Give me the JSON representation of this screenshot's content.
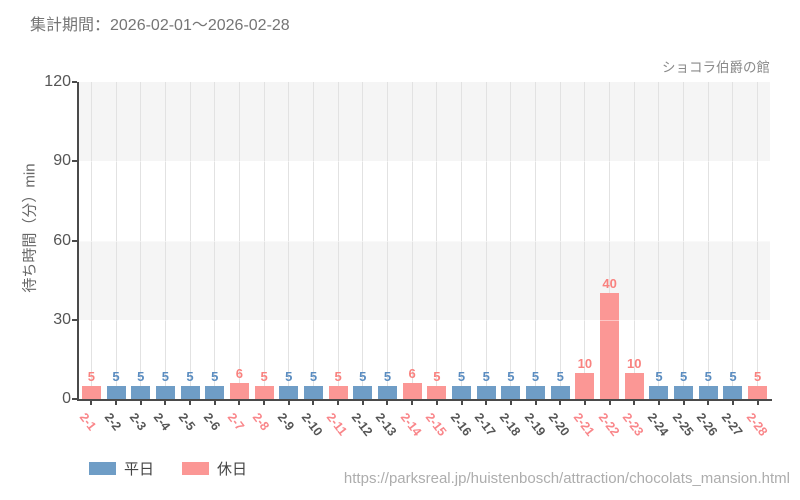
{
  "header": {
    "period_title": "集計期間：2026-02-01～2026-02-28",
    "attraction_name": "ショコラ伯爵の館"
  },
  "legend": {
    "weekday": "平日",
    "holiday": "休日"
  },
  "footer": {
    "url": "https://parksreal.jp/huistenbosch/attraction/chocolats_mansion.html"
  },
  "colors": {
    "weekday_bar": "#6f9dc6",
    "holiday_bar": "#fb9795",
    "weekday_value_label": "#5a8cc0",
    "holiday_value_label": "#f9827f",
    "weekday_tick_label": "#555555",
    "holiday_tick_label": "#f9868a",
    "band_gray": "#f5f5f5",
    "grid_line": "#e2e2e2",
    "axis": "#4a4a4a"
  },
  "chart_data": {
    "type": "bar",
    "title": "集計期間：2026-02-01～2026-02-28",
    "subtitle": "ショコラ伯爵の館",
    "xlabel": "",
    "ylabel": "待ち時間（分）min",
    "ylim": [
      0,
      120
    ],
    "yticks": [
      0,
      30,
      60,
      90,
      120
    ],
    "grid": true,
    "legend_position": "bottom-left",
    "categories": [
      "2-1",
      "2-2",
      "2-3",
      "2-4",
      "2-5",
      "2-6",
      "2-7",
      "2-8",
      "2-9",
      "2-10",
      "2-11",
      "2-12",
      "2-13",
      "2-14",
      "2-15",
      "2-16",
      "2-17",
      "2-18",
      "2-19",
      "2-20",
      "2-21",
      "2-22",
      "2-23",
      "2-24",
      "2-25",
      "2-26",
      "2-27",
      "2-28"
    ],
    "values": [
      5,
      5,
      5,
      5,
      5,
      5,
      6,
      5,
      5,
      5,
      5,
      5,
      5,
      6,
      5,
      5,
      5,
      5,
      5,
      5,
      10,
      40,
      10,
      5,
      5,
      5,
      5,
      5
    ],
    "day_types": [
      "holiday",
      "weekday",
      "weekday",
      "weekday",
      "weekday",
      "weekday",
      "holiday",
      "holiday",
      "weekday",
      "weekday",
      "holiday",
      "weekday",
      "weekday",
      "holiday",
      "holiday",
      "weekday",
      "weekday",
      "weekday",
      "weekday",
      "weekday",
      "holiday",
      "holiday",
      "holiday",
      "weekday",
      "weekday",
      "weekday",
      "weekday",
      "holiday"
    ],
    "series_legend": [
      {
        "name": "平日",
        "type": "weekday"
      },
      {
        "name": "休日",
        "type": "holiday"
      }
    ]
  }
}
